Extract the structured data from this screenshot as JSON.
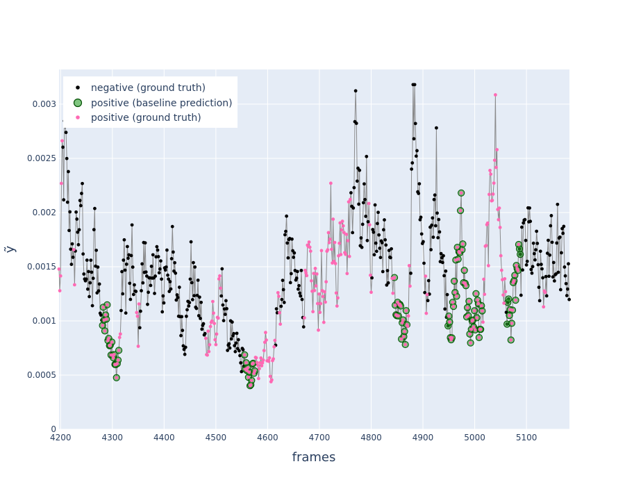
{
  "chart_data": {
    "type": "scatter",
    "title": "",
    "xlabel": "frames",
    "ylabel": "ỹ",
    "xlim": [
      4197,
      5183
    ],
    "ylim": [
      0,
      0.00332
    ],
    "x_ticks": [
      4200,
      4300,
      4400,
      4500,
      4600,
      4700,
      4800,
      4900,
      5000,
      5100
    ],
    "x_tick_labels": [
      "4200",
      "4300",
      "4400",
      "4500",
      "4600",
      "4700",
      "4800",
      "4900",
      "5000",
      "5100"
    ],
    "y_ticks": [
      0,
      0.0005,
      0.001,
      0.0015,
      0.002,
      0.0025,
      0.003
    ],
    "y_tick_labels": [
      "0",
      "0.0005",
      "0.001",
      "0.0015",
      "0.002",
      "0.0025",
      "0.003"
    ],
    "grid": true,
    "legend_position": "top-left",
    "plot_background": "#e5ecf6",
    "line_color": "#808080",
    "series": [
      {
        "name": "negative (ground truth)",
        "marker": "dot",
        "color": "#000000"
      },
      {
        "name": "positive (baseline prediction)",
        "marker": "circle-large",
        "color": "#2ca02c",
        "edge": "#004d00"
      },
      {
        "name": "positive (ground truth)",
        "marker": "dot",
        "color": "#ff69b4"
      }
    ],
    "keypoints": [
      [
        4197,
        0.0014
      ],
      [
        4200,
        0.00135
      ],
      [
        4203,
        0.0025
      ],
      [
        4206,
        0.0024
      ],
      [
        4209,
        0.0026
      ],
      [
        4212,
        0.0023
      ],
      [
        4216,
        0.0021
      ],
      [
        4220,
        0.0018
      ],
      [
        4224,
        0.0014
      ],
      [
        4228,
        0.0016
      ],
      [
        4232,
        0.0021
      ],
      [
        4236,
        0.0016
      ],
      [
        4240,
        0.0023
      ],
      [
        4246,
        0.0015
      ],
      [
        4252,
        0.0013
      ],
      [
        4258,
        0.0014
      ],
      [
        4262,
        0.0012
      ],
      [
        4266,
        0.0019
      ],
      [
        4270,
        0.0015
      ],
      [
        4274,
        0.0013
      ],
      [
        4278,
        0.0011
      ],
      [
        4282,
        0.00095
      ],
      [
        4288,
        0.0012
      ],
      [
        4294,
        0.00085
      ],
      [
        4298,
        0.00075
      ],
      [
        4302,
        0.00065
      ],
      [
        4306,
        0.00055
      ],
      [
        4310,
        0.0006
      ],
      [
        4314,
        0.0008
      ],
      [
        4318,
        0.0012
      ],
      [
        4322,
        0.0016
      ],
      [
        4326,
        0.0013
      ],
      [
        4330,
        0.0017
      ],
      [
        4334,
        0.0012
      ],
      [
        4338,
        0.0016
      ],
      [
        4344,
        0.0012
      ],
      [
        4350,
        0.0009
      ],
      [
        4356,
        0.0013
      ],
      [
        4362,
        0.0016
      ],
      [
        4368,
        0.0014
      ],
      [
        4374,
        0.0012
      ],
      [
        4380,
        0.0015
      ],
      [
        4386,
        0.0016
      ],
      [
        4392,
        0.0014
      ],
      [
        4398,
        0.0012
      ],
      [
        4404,
        0.0016
      ],
      [
        4410,
        0.0014
      ],
      [
        4416,
        0.0016
      ],
      [
        4422,
        0.0013
      ],
      [
        4428,
        0.0012
      ],
      [
        4434,
        0.001
      ],
      [
        4440,
        0.0008
      ],
      [
        4446,
        0.0011
      ],
      [
        4452,
        0.0015
      ],
      [
        4458,
        0.0013
      ],
      [
        4464,
        0.0012
      ],
      [
        4470,
        0.0011
      ],
      [
        4476,
        0.0009
      ],
      [
        4482,
        0.00075
      ],
      [
        4488,
        0.0009
      ],
      [
        4494,
        0.0011
      ],
      [
        4500,
        0.0008
      ],
      [
        4506,
        0.0012
      ],
      [
        4512,
        0.0013
      ],
      [
        4518,
        0.0011
      ],
      [
        4524,
        0.0008
      ],
      [
        4530,
        0.0009
      ],
      [
        4536,
        0.0007
      ],
      [
        4542,
        0.0008
      ],
      [
        4548,
        0.0006
      ],
      [
        4554,
        0.0007
      ],
      [
        4560,
        0.0005
      ],
      [
        4566,
        0.00045
      ],
      [
        4572,
        0.00055
      ],
      [
        4578,
        0.0006
      ],
      [
        4584,
        0.0005
      ],
      [
        4590,
        0.0007
      ],
      [
        4596,
        0.0009
      ],
      [
        4602,
        0.0006
      ],
      [
        4608,
        0.0005
      ],
      [
        4614,
        0.0008
      ],
      [
        4620,
        0.0012
      ],
      [
        4626,
        0.0011
      ],
      [
        4632,
        0.0014
      ],
      [
        4638,
        0.0019
      ],
      [
        4644,
        0.0014
      ],
      [
        4650,
        0.0016
      ],
      [
        4656,
        0.0013
      ],
      [
        4662,
        0.0015
      ],
      [
        4668,
        0.0011
      ],
      [
        4674,
        0.0013
      ],
      [
        4680,
        0.0016
      ],
      [
        4686,
        0.0012
      ],
      [
        4692,
        0.0014
      ],
      [
        4698,
        0.0011
      ],
      [
        4704,
        0.0014
      ],
      [
        4710,
        0.0011
      ],
      [
        4716,
        0.0015
      ],
      [
        4722,
        0.0021
      ],
      [
        4728,
        0.0016
      ],
      [
        4734,
        0.0013
      ],
      [
        4740,
        0.0018
      ],
      [
        4746,
        0.0022
      ],
      [
        4752,
        0.0016
      ],
      [
        4758,
        0.0019
      ],
      [
        4764,
        0.0022
      ],
      [
        4770,
        0.0028
      ],
      [
        4776,
        0.0023
      ],
      [
        4782,
        0.0018
      ],
      [
        4788,
        0.0025
      ],
      [
        4794,
        0.0019
      ],
      [
        4800,
        0.0015
      ],
      [
        4806,
        0.0017
      ],
      [
        4812,
        0.002
      ],
      [
        4818,
        0.0016
      ],
      [
        4824,
        0.0018
      ],
      [
        4830,
        0.0014
      ],
      [
        4836,
        0.0017
      ],
      [
        4842,
        0.0013
      ],
      [
        4848,
        0.0011
      ],
      [
        4854,
        0.001
      ],
      [
        4860,
        0.00095
      ],
      [
        4866,
        0.0009
      ],
      [
        4872,
        0.0012
      ],
      [
        4876,
        0.0016
      ],
      [
        4880,
        0.0028
      ],
      [
        4884,
        0.0031
      ],
      [
        4888,
        0.0027
      ],
      [
        4892,
        0.0022
      ],
      [
        4896,
        0.0018
      ],
      [
        4902,
        0.0014
      ],
      [
        4908,
        0.0012
      ],
      [
        4914,
        0.0016
      ],
      [
        4920,
        0.0018
      ],
      [
        4926,
        0.0024
      ],
      [
        4932,
        0.0019
      ],
      [
        4938,
        0.0015
      ],
      [
        4944,
        0.0013
      ],
      [
        4950,
        0.0011
      ],
      [
        4956,
        0.0009
      ],
      [
        4962,
        0.0013
      ],
      [
        4968,
        0.0016
      ],
      [
        4974,
        0.0019
      ],
      [
        4980,
        0.0014
      ],
      [
        4986,
        0.0012
      ],
      [
        4992,
        0.0009
      ],
      [
        4998,
        0.0009
      ],
      [
        5004,
        0.0012
      ],
      [
        5010,
        0.0009
      ],
      [
        5016,
        0.0011
      ],
      [
        5022,
        0.0016
      ],
      [
        5028,
        0.0019
      ],
      [
        5034,
        0.0024
      ],
      [
        5040,
        0.0027
      ],
      [
        5046,
        0.0021
      ],
      [
        5052,
        0.0015
      ],
      [
        5058,
        0.0012
      ],
      [
        5064,
        0.0011
      ],
      [
        5070,
        0.001
      ],
      [
        5076,
        0.0012
      ],
      [
        5082,
        0.0015
      ],
      [
        5088,
        0.0014
      ],
      [
        5094,
        0.0018
      ],
      [
        5100,
        0.0016
      ],
      [
        5106,
        0.0019
      ],
      [
        5112,
        0.0014
      ],
      [
        5118,
        0.0017
      ],
      [
        5124,
        0.0013
      ],
      [
        5130,
        0.0015
      ],
      [
        5136,
        0.0011
      ],
      [
        5142,
        0.0016
      ],
      [
        5148,
        0.0019
      ],
      [
        5154,
        0.0014
      ],
      [
        5160,
        0.0018
      ],
      [
        5166,
        0.0015
      ],
      [
        5172,
        0.0017
      ],
      [
        5178,
        0.0013
      ],
      [
        5183,
        0.0014
      ]
    ],
    "positive_ground_truth_ranges": [
      [
        4197,
        4203
      ],
      [
        4225,
        4228
      ],
      [
        4280,
        4316
      ],
      [
        4346,
        4352
      ],
      [
        4480,
        4510
      ],
      [
        4555,
        4615
      ],
      [
        4620,
        4625
      ],
      [
        4670,
        4760
      ],
      [
        4795,
        4800
      ],
      [
        4840,
        4875
      ],
      [
        4905,
        4908
      ],
      [
        4950,
        5060
      ],
      [
        5066,
        5085
      ],
      [
        5133,
        5137
      ]
    ],
    "baseline_prediction_ranges": [
      [
        4280,
        4313
      ],
      [
        4555,
        4575
      ],
      [
        4845,
        4870
      ],
      [
        4948,
        5015
      ],
      [
        5062,
        5088
      ]
    ]
  }
}
